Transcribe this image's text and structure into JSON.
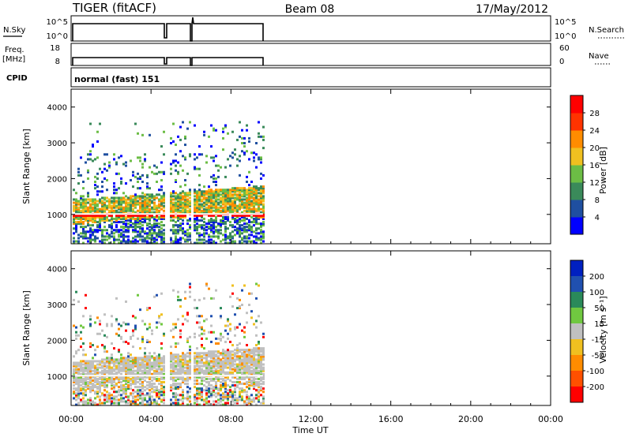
{
  "header": {
    "station": "TIGER (fitACF)",
    "beam": "Beam 08",
    "date": "17/May/2012"
  },
  "top_panels": {
    "nsky_label": "N.Sky",
    "nsky_ticks": [
      "10^5",
      "10^0"
    ],
    "nsearch_label": "N.Search",
    "nsearch_ticks": [
      "10^5",
      "10^0"
    ],
    "freq_label": "Freq.",
    "freq_unit": "[MHz]",
    "freq_ticks": [
      "18",
      "8"
    ],
    "nave_label": "Nave",
    "nave_ticks": [
      "60",
      "0"
    ],
    "cpid_label": "CPID",
    "cpid_text": "normal (fast) 151"
  },
  "chart_data": [
    {
      "type": "heatmap",
      "name": "power",
      "ylabel": "Slant Range [km]",
      "xlabel": "Time UT",
      "x_ticks": [
        "00:00",
        "04:00",
        "08:00",
        "12:00",
        "16:00",
        "20:00",
        "00:00"
      ],
      "x_range_hours": [
        0,
        24
      ],
      "data_end_hours": 9.6,
      "y_ticks": [
        1000,
        2000,
        3000,
        4000
      ],
      "ylim": [
        180,
        4500
      ],
      "colorbar_label": "Power [dB]",
      "colorbar_ticks": [
        4,
        8,
        12,
        16,
        20,
        24,
        28
      ],
      "colorbar_colors": [
        "#0000ff",
        "#1f4fa0",
        "#3a8a5a",
        "#6cbd45",
        "#f0c020",
        "#ff8c00",
        "#ff3300",
        "#ff0000"
      ]
    },
    {
      "type": "heatmap",
      "name": "velocity",
      "ylabel": "Slant Range [km]",
      "xlabel": "Time UT",
      "x_ticks": [
        "00:00",
        "04:00",
        "08:00",
        "12:00",
        "16:00",
        "20:00",
        "00:00"
      ],
      "x_range_hours": [
        0,
        24
      ],
      "data_end_hours": 9.6,
      "y_ticks": [
        1000,
        2000,
        3000,
        4000
      ],
      "ylim": [
        180,
        4500
      ],
      "colorbar_label": "Velocity [m s⁻¹]",
      "colorbar_ticks": [
        "200",
        "100",
        "50",
        "15",
        "-15",
        "-50",
        "-100",
        "-200"
      ],
      "colorbar_colors": [
        "#0020c0",
        "#2050b0",
        "#2a8a5a",
        "#70c840",
        "#c0c0c0",
        "#f0c020",
        "#ff8c00",
        "#ff5000",
        "#ff0000"
      ]
    }
  ],
  "time_axis_label": "Time UT"
}
